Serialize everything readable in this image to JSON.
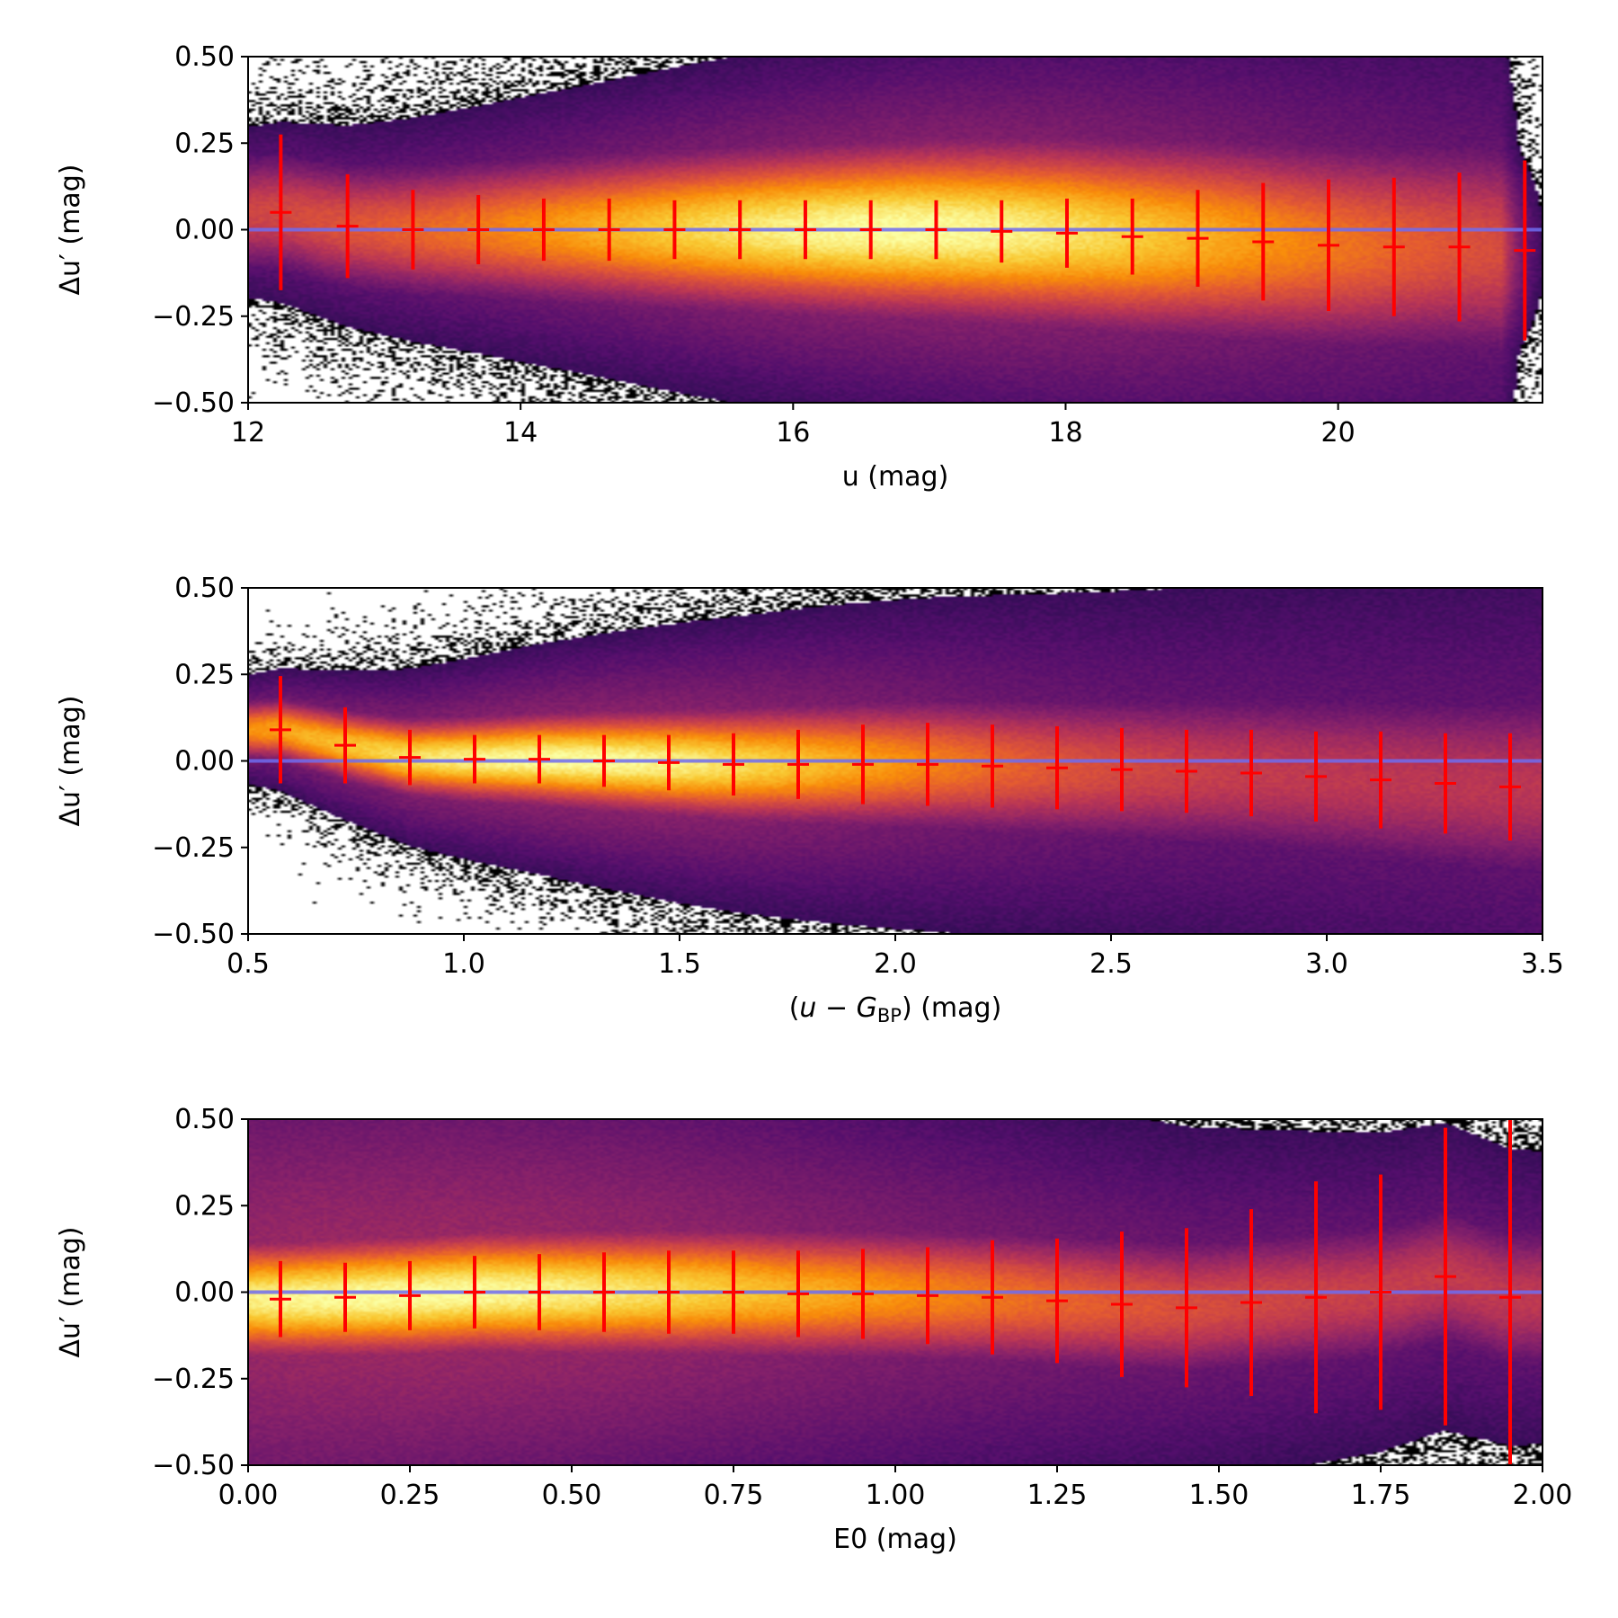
{
  "chart_data": [
    {
      "type": "heatmap",
      "xlabel": "u (mag)",
      "ylabel": "Δu′ (mag)",
      "xlim": [
        12,
        21.5
      ],
      "ylim": [
        -0.5,
        0.5
      ],
      "xticks": [
        "12",
        "14",
        "16",
        "18",
        "20"
      ],
      "xtick_values": [
        12,
        14,
        16,
        18,
        20
      ],
      "yticks": [
        "−0.50",
        "−0.25",
        "0.00",
        "0.25",
        "0.50"
      ],
      "ytick_values": [
        -0.5,
        -0.25,
        0.0,
        0.25,
        0.5
      ],
      "reference_line": {
        "y": 0.0,
        "color": "#6f6cf0"
      },
      "colormap": "inferno",
      "density": {
        "center": 16.8,
        "spread": 3.2,
        "width_left": 0.1,
        "width_right": 0.19,
        "envelope_left": 0.18,
        "envelope_right": 0.48,
        "cutoff": 21.2
      },
      "binned_points": {
        "color": "#ff0000",
        "x": [
          12.24,
          12.73,
          13.21,
          13.69,
          14.17,
          14.65,
          15.13,
          15.61,
          16.09,
          16.57,
          17.05,
          17.53,
          18.01,
          18.49,
          18.97,
          19.45,
          19.93,
          20.41,
          20.89,
          21.37
        ],
        "y": [
          0.05,
          0.01,
          0.0,
          0.0,
          0.0,
          0.0,
          0.0,
          0.0,
          0.0,
          0.0,
          0.0,
          -0.005,
          -0.01,
          -0.02,
          -0.025,
          -0.035,
          -0.045,
          -0.05,
          -0.05,
          -0.06
        ],
        "yerr": [
          0.225,
          0.15,
          0.115,
          0.1,
          0.09,
          0.09,
          0.085,
          0.085,
          0.085,
          0.085,
          0.085,
          0.09,
          0.1,
          0.11,
          0.14,
          0.17,
          0.19,
          0.2,
          0.215,
          0.26
        ]
      }
    },
    {
      "type": "heatmap",
      "xlabel_parts": {
        "open": "(",
        "var": "u",
        "minus": " − ",
        "G": "G",
        "sub": "BP",
        "close": ")",
        "unit": " (mag)"
      },
      "ylabel": "Δu′ (mag)",
      "xlim": [
        0.5,
        3.5
      ],
      "ylim": [
        -0.5,
        0.5
      ],
      "xticks": [
        "0.5",
        "1.0",
        "1.5",
        "2.0",
        "2.5",
        "3.0",
        "3.5"
      ],
      "xtick_values": [
        0.5,
        1.0,
        1.5,
        2.0,
        2.5,
        3.0,
        3.5
      ],
      "yticks": [
        "−0.50",
        "−0.25",
        "0.00",
        "0.25",
        "0.50"
      ],
      "ytick_values": [
        -0.5,
        -0.25,
        0.0,
        0.25,
        0.5
      ],
      "reference_line": {
        "y": 0.0,
        "color": "#6f6cf0"
      },
      "colormap": "inferno",
      "density": {
        "center": 1.25,
        "spread": 0.9,
        "width_left": 0.05,
        "width_right": 0.17,
        "envelope_left": 0.1,
        "envelope_right": 0.5,
        "cutoff": 99
      },
      "binned_points": {
        "color": "#ff0000",
        "x": [
          0.575,
          0.725,
          0.875,
          1.025,
          1.175,
          1.325,
          1.475,
          1.625,
          1.775,
          1.925,
          2.075,
          2.225,
          2.375,
          2.525,
          2.675,
          2.825,
          2.975,
          3.125,
          3.275,
          3.425
        ],
        "y": [
          0.09,
          0.045,
          0.01,
          0.005,
          0.005,
          0.0,
          -0.005,
          -0.01,
          -0.01,
          -0.01,
          -0.01,
          -0.015,
          -0.02,
          -0.025,
          -0.03,
          -0.035,
          -0.045,
          -0.055,
          -0.065,
          -0.075
        ],
        "yerr": [
          0.155,
          0.11,
          0.08,
          0.07,
          0.07,
          0.075,
          0.08,
          0.09,
          0.1,
          0.115,
          0.12,
          0.12,
          0.12,
          0.12,
          0.12,
          0.125,
          0.13,
          0.14,
          0.145,
          0.155
        ]
      }
    },
    {
      "type": "heatmap",
      "xlabel": "E0 (mag)",
      "ylabel": "Δu′ (mag)",
      "xlim": [
        0.0,
        2.0
      ],
      "ylim": [
        -0.5,
        0.5
      ],
      "xticks": [
        "0.00",
        "0.25",
        "0.50",
        "0.75",
        "1.00",
        "1.25",
        "1.50",
        "1.75",
        "2.00"
      ],
      "xtick_values": [
        0.0,
        0.25,
        0.5,
        0.75,
        1.0,
        1.25,
        1.5,
        1.75,
        2.0
      ],
      "yticks": [
        "−0.50",
        "−0.25",
        "0.00",
        "0.25",
        "0.50"
      ],
      "ytick_values": [
        -0.5,
        -0.25,
        0.0,
        0.25,
        0.5
      ],
      "reference_line": {
        "y": 0.0,
        "color": "#6f6cf0"
      },
      "colormap": "inferno",
      "density": {
        "center": 0.25,
        "spread": 0.9,
        "width_left": 0.1,
        "width_right": 0.13,
        "envelope_left": 0.5,
        "envelope_right": 0.32,
        "cutoff": 99
      },
      "binned_points": {
        "color": "#ff0000",
        "x": [
          0.05,
          0.15,
          0.25,
          0.35,
          0.45,
          0.55,
          0.65,
          0.75,
          0.85,
          0.95,
          1.05,
          1.15,
          1.25,
          1.35,
          1.45,
          1.55,
          1.65,
          1.75,
          1.85,
          1.95
        ],
        "y": [
          -0.02,
          -0.015,
          -0.01,
          0.0,
          0.0,
          0.0,
          0.0,
          0.0,
          -0.005,
          -0.005,
          -0.01,
          -0.015,
          -0.025,
          -0.035,
          -0.045,
          -0.03,
          -0.015,
          0.0,
          0.045,
          -0.015
        ],
        "yerr": [
          0.11,
          0.1,
          0.1,
          0.105,
          0.11,
          0.115,
          0.12,
          0.12,
          0.125,
          0.13,
          0.14,
          0.165,
          0.18,
          0.21,
          0.23,
          0.27,
          0.335,
          0.34,
          0.43,
          0.56
        ]
      }
    }
  ]
}
